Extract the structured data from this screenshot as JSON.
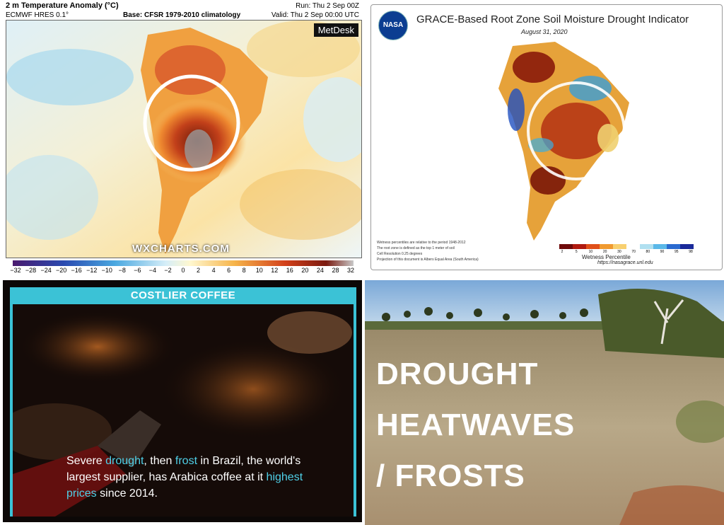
{
  "temperature_map": {
    "title": "2 m Temperature Anomaly (°C)",
    "model": "ECMWF HRES 0.1°",
    "base": "Base: CFSR 1979-2010 climatology",
    "run": "Run: Thu 2 Sep 00Z",
    "valid": "Valid: Thu 2 Sep 00:00 UTC",
    "brand": "MetDesk",
    "watermark": "WXCHARTS.COM",
    "scale_ticks": [
      "−32",
      "−28",
      "−24",
      "−20",
      "−16",
      "−12",
      "−10",
      "−8",
      "−6",
      "−4",
      "−2",
      "0",
      "2",
      "4",
      "6",
      "8",
      "10",
      "12",
      "16",
      "20",
      "24",
      "28",
      "32"
    ]
  },
  "grace_map": {
    "logo": "NASA",
    "title": "GRACE-Based Root Zone Soil Moisture Drought Indicator",
    "date": "August 31, 2020",
    "notes": [
      "Wetness percentiles are relative to the period 1948-2012",
      "The root zone is defined as the top 1 meter of soil",
      "Cell Resolution 0.25 degrees",
      "Projection of this document is Albers Equal Area (South America)"
    ],
    "scale_ticks": [
      "2",
      "5",
      "10",
      "20",
      "30",
      "70",
      "80",
      "90",
      "95",
      "98"
    ],
    "scale_label": "Wetness Percentile",
    "url": "https://nasagrace.unl.edu"
  },
  "coffee": {
    "banner": "COSTLIER COFFEE",
    "caption": {
      "p1": "Severe ",
      "drought": "drought",
      "p2": ", then ",
      "frost": "frost",
      "p3": " in Brazil, the world's largest supplier, has Arabica coffee at it ",
      "highest": "highest prices",
      "p4": " since 2014."
    }
  },
  "field": {
    "line1": "DROUGHT",
    "line2": "HEATWAVES",
    "line3": "/ FROSTS"
  },
  "colors": {
    "cyan_accent": "#3bc2d6",
    "nasa_blue": "#0b3d91"
  }
}
